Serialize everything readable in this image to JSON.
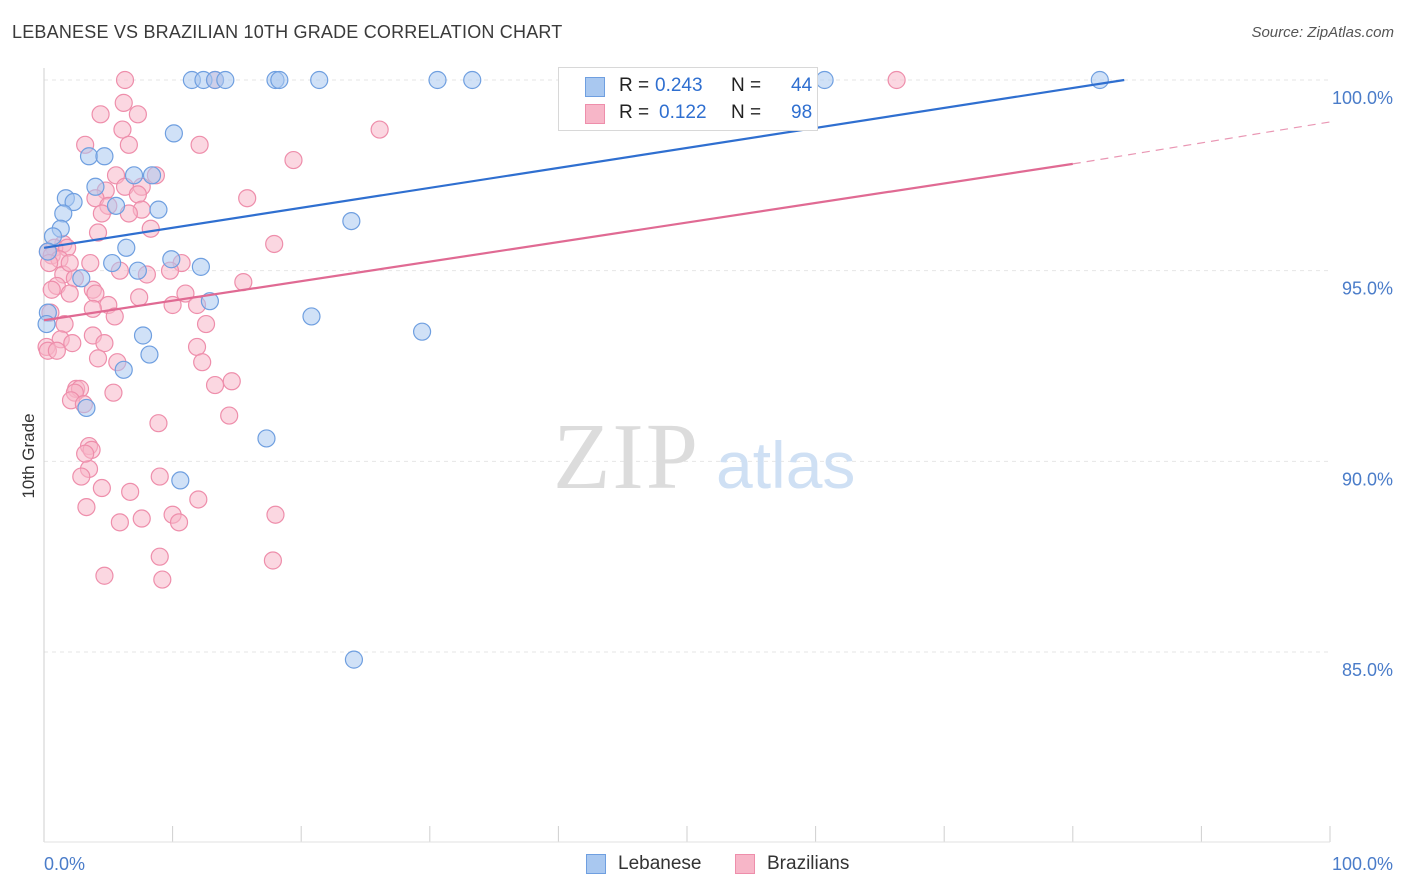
{
  "title": "LEBANESE VS BRAZILIAN 10TH GRADE CORRELATION CHART",
  "source": "Source: ZipAtlas.com",
  "watermark": {
    "zip": "ZIP",
    "atlas": "atlas"
  },
  "colors": {
    "lebanese_fill": "#a9c8f0",
    "lebanese_stroke": "#6f9fe0",
    "lebanese_line": "#2f6fd0",
    "brazilian_fill": "#f7b6c8",
    "brazilian_stroke": "#ee8eab",
    "brazilian_line": "#e06a93",
    "tick_text": "#4a7cc9",
    "grid": "#e6e6e6"
  },
  "legend": {
    "lebanese": {
      "r_label": "R =",
      "r_value": "0.243",
      "n_label": "N =",
      "n_value": "44"
    },
    "brazilian": {
      "r_label": "R =",
      "r_value": "0.122",
      "n_label": "N =",
      "n_value": "98"
    }
  },
  "bottom_legend": {
    "lebanese": "Lebanese",
    "brazilian": "Brazilians"
  },
  "chart_data": {
    "type": "scatter",
    "title": "LEBANESE VS BRAZILIAN 10TH GRADE CORRELATION CHART",
    "xlabel": "",
    "ylabel": "10th Grade",
    "xlim": [
      0,
      100
    ],
    "ylim": [
      80.6,
      101.0
    ],
    "x_tick_labels": [
      "0.0%",
      "100.0%"
    ],
    "y_ticks": [
      85.0,
      90.0,
      95.0,
      100.0
    ],
    "y_tick_labels": [
      "85.0%",
      "90.0%",
      "95.0%",
      "100.0%"
    ],
    "grid": true,
    "legend_position": "top-center",
    "series": [
      {
        "name": "Lebanese",
        "R": 0.243,
        "N": 44,
        "trend": {
          "x0": 0.0,
          "y0": 95.6,
          "x1": 84.0,
          "y1": 100.0
        },
        "points": [
          {
            "x": 11.5,
            "y": 100.0
          },
          {
            "x": 12.4,
            "y": 100.0
          },
          {
            "x": 13.3,
            "y": 100.0
          },
          {
            "x": 14.1,
            "y": 100.0
          },
          {
            "x": 18.0,
            "y": 100.0
          },
          {
            "x": 18.3,
            "y": 100.0
          },
          {
            "x": 21.4,
            "y": 100.0
          },
          {
            "x": 30.6,
            "y": 100.0
          },
          {
            "x": 33.3,
            "y": 100.0
          },
          {
            "x": 60.7,
            "y": 100.0
          },
          {
            "x": 82.1,
            "y": 100.0
          },
          {
            "x": 10.1,
            "y": 98.6
          },
          {
            "x": 3.5,
            "y": 98.0
          },
          {
            "x": 4.7,
            "y": 98.0
          },
          {
            "x": 7.0,
            "y": 97.5
          },
          {
            "x": 8.4,
            "y": 97.5
          },
          {
            "x": 4.0,
            "y": 97.2
          },
          {
            "x": 1.7,
            "y": 96.9
          },
          {
            "x": 2.3,
            "y": 96.8
          },
          {
            "x": 5.6,
            "y": 96.7
          },
          {
            "x": 8.9,
            "y": 96.6
          },
          {
            "x": 1.5,
            "y": 96.5
          },
          {
            "x": 23.9,
            "y": 96.3
          },
          {
            "x": 1.3,
            "y": 96.1
          },
          {
            "x": 0.7,
            "y": 95.9
          },
          {
            "x": 6.4,
            "y": 95.6
          },
          {
            "x": 0.3,
            "y": 95.5
          },
          {
            "x": 9.9,
            "y": 95.3
          },
          {
            "x": 5.3,
            "y": 95.2
          },
          {
            "x": 12.2,
            "y": 95.1
          },
          {
            "x": 7.3,
            "y": 95.0
          },
          {
            "x": 2.9,
            "y": 94.8
          },
          {
            "x": 12.9,
            "y": 94.2
          },
          {
            "x": 0.3,
            "y": 93.9
          },
          {
            "x": 0.2,
            "y": 93.6
          },
          {
            "x": 20.8,
            "y": 93.8
          },
          {
            "x": 7.7,
            "y": 93.3
          },
          {
            "x": 29.4,
            "y": 93.4
          },
          {
            "x": 8.2,
            "y": 92.8
          },
          {
            "x": 6.2,
            "y": 92.4
          },
          {
            "x": 3.3,
            "y": 91.4
          },
          {
            "x": 17.3,
            "y": 90.6
          },
          {
            "x": 10.6,
            "y": 89.5
          },
          {
            "x": 24.1,
            "y": 84.8
          }
        ]
      },
      {
        "name": "Brazilians",
        "R": 0.122,
        "N": 98,
        "trend": {
          "x0": 0.0,
          "y0": 93.7,
          "x1": 80.0,
          "y1": 97.8
        },
        "trend_dashed_to": {
          "x": 100.0,
          "y": 98.9
        },
        "points": [
          {
            "x": 6.3,
            "y": 100.0
          },
          {
            "x": 13.3,
            "y": 100.0
          },
          {
            "x": 66.3,
            "y": 100.0
          },
          {
            "x": 6.2,
            "y": 99.4
          },
          {
            "x": 4.4,
            "y": 99.1
          },
          {
            "x": 7.3,
            "y": 99.1
          },
          {
            "x": 6.1,
            "y": 98.7
          },
          {
            "x": 26.1,
            "y": 98.7
          },
          {
            "x": 3.2,
            "y": 98.3
          },
          {
            "x": 6.6,
            "y": 98.3
          },
          {
            "x": 12.1,
            "y": 98.3
          },
          {
            "x": 19.4,
            "y": 97.9
          },
          {
            "x": 5.6,
            "y": 97.5
          },
          {
            "x": 8.7,
            "y": 97.5
          },
          {
            "x": 7.6,
            "y": 97.2
          },
          {
            "x": 6.3,
            "y": 97.2
          },
          {
            "x": 4.8,
            "y": 97.1
          },
          {
            "x": 7.3,
            "y": 97.0
          },
          {
            "x": 4.0,
            "y": 96.9
          },
          {
            "x": 15.8,
            "y": 96.9
          },
          {
            "x": 5.0,
            "y": 96.7
          },
          {
            "x": 7.6,
            "y": 96.6
          },
          {
            "x": 4.5,
            "y": 96.5
          },
          {
            "x": 6.6,
            "y": 96.5
          },
          {
            "x": 8.3,
            "y": 96.1
          },
          {
            "x": 4.2,
            "y": 96.0
          },
          {
            "x": 1.5,
            "y": 95.7
          },
          {
            "x": 17.9,
            "y": 95.7
          },
          {
            "x": 0.8,
            "y": 95.6
          },
          {
            "x": 1.8,
            "y": 95.6
          },
          {
            "x": 0.3,
            "y": 95.5
          },
          {
            "x": 0.6,
            "y": 95.4
          },
          {
            "x": 1.2,
            "y": 95.3
          },
          {
            "x": 0.4,
            "y": 95.2
          },
          {
            "x": 3.6,
            "y": 95.2
          },
          {
            "x": 10.7,
            "y": 95.2
          },
          {
            "x": 5.9,
            "y": 95.0
          },
          {
            "x": 1.5,
            "y": 94.9
          },
          {
            "x": 2.4,
            "y": 94.8
          },
          {
            "x": 15.5,
            "y": 94.7
          },
          {
            "x": 1.0,
            "y": 94.6
          },
          {
            "x": 3.8,
            "y": 94.5
          },
          {
            "x": 2.0,
            "y": 94.4
          },
          {
            "x": 4.0,
            "y": 94.4
          },
          {
            "x": 11.0,
            "y": 94.4
          },
          {
            "x": 7.4,
            "y": 94.3
          },
          {
            "x": 5.0,
            "y": 94.1
          },
          {
            "x": 10.0,
            "y": 94.1
          },
          {
            "x": 3.8,
            "y": 94.0
          },
          {
            "x": 11.9,
            "y": 94.1
          },
          {
            "x": 0.5,
            "y": 93.9
          },
          {
            "x": 5.5,
            "y": 93.8
          },
          {
            "x": 1.6,
            "y": 93.6
          },
          {
            "x": 3.8,
            "y": 93.3
          },
          {
            "x": 1.3,
            "y": 93.2
          },
          {
            "x": 2.2,
            "y": 93.1
          },
          {
            "x": 4.7,
            "y": 93.1
          },
          {
            "x": 0.2,
            "y": 93.0
          },
          {
            "x": 0.3,
            "y": 92.9
          },
          {
            "x": 11.9,
            "y": 93.0
          },
          {
            "x": 4.2,
            "y": 92.7
          },
          {
            "x": 12.3,
            "y": 92.6
          },
          {
            "x": 5.7,
            "y": 92.6
          },
          {
            "x": 2.5,
            "y": 91.9
          },
          {
            "x": 2.8,
            "y": 91.9
          },
          {
            "x": 2.4,
            "y": 91.8
          },
          {
            "x": 13.3,
            "y": 92.0
          },
          {
            "x": 5.4,
            "y": 91.8
          },
          {
            "x": 2.1,
            "y": 91.6
          },
          {
            "x": 3.1,
            "y": 91.5
          },
          {
            "x": 14.4,
            "y": 91.2
          },
          {
            "x": 8.9,
            "y": 91.0
          },
          {
            "x": 3.5,
            "y": 90.4
          },
          {
            "x": 3.7,
            "y": 90.3
          },
          {
            "x": 3.5,
            "y": 89.8
          },
          {
            "x": 2.9,
            "y": 89.6
          },
          {
            "x": 9.0,
            "y": 89.6
          },
          {
            "x": 4.5,
            "y": 89.3
          },
          {
            "x": 6.7,
            "y": 89.2
          },
          {
            "x": 12.0,
            "y": 89.0
          },
          {
            "x": 3.3,
            "y": 88.8
          },
          {
            "x": 10.0,
            "y": 88.6
          },
          {
            "x": 18.0,
            "y": 88.6
          },
          {
            "x": 7.6,
            "y": 88.5
          },
          {
            "x": 5.9,
            "y": 88.4
          },
          {
            "x": 10.5,
            "y": 88.4
          },
          {
            "x": 9.0,
            "y": 87.5
          },
          {
            "x": 17.8,
            "y": 87.4
          },
          {
            "x": 4.7,
            "y": 87.0
          },
          {
            "x": 9.2,
            "y": 86.9
          },
          {
            "x": 14.6,
            "y": 92.1
          },
          {
            "x": 3.2,
            "y": 90.2
          },
          {
            "x": 1.0,
            "y": 92.9
          },
          {
            "x": 2.0,
            "y": 95.2
          },
          {
            "x": 9.8,
            "y": 95.0
          },
          {
            "x": 8.0,
            "y": 94.9
          },
          {
            "x": 12.6,
            "y": 93.6
          },
          {
            "x": 0.6,
            "y": 94.5
          }
        ]
      }
    ]
  }
}
